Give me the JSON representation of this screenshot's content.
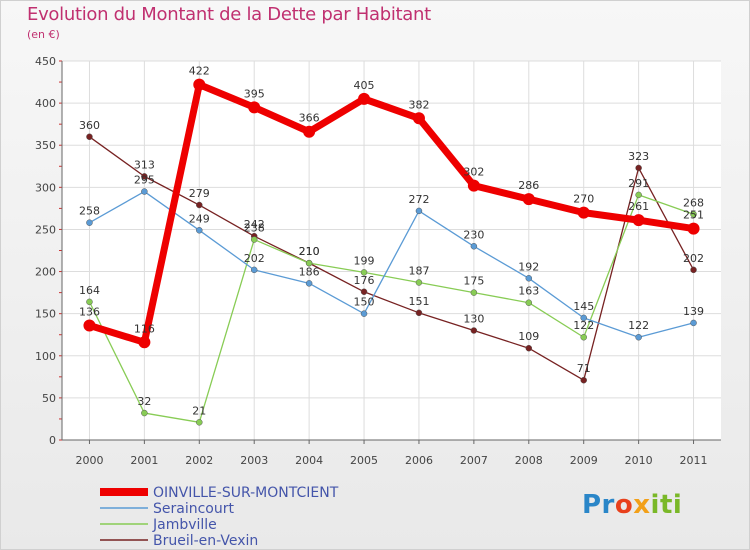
{
  "title": "Evolution du Montant de la Dette par Habitant",
  "subtitle": "(en €)",
  "logo": {
    "text": "Proxiti",
    "parts": [
      "Pr",
      "o",
      "x",
      "iti"
    ]
  },
  "chart_data": {
    "type": "line",
    "title": "Evolution du Montant de la Dette par Habitant",
    "subtitle": "(en €)",
    "xlabel": "",
    "ylabel": "",
    "x": [
      "2000",
      "2001",
      "2002",
      "2003",
      "2004",
      "2005",
      "2006",
      "2007",
      "2008",
      "2009",
      "2010",
      "2011"
    ],
    "ylim": [
      0,
      450
    ],
    "yticks": [
      0,
      50,
      100,
      150,
      200,
      250,
      300,
      350,
      400,
      450
    ],
    "grid": true,
    "legend_position": "bottom-left",
    "series": [
      {
        "name": "OINVILLE-SUR-MONTCIENT",
        "color": "#ee0000",
        "values": [
          136,
          116,
          422,
          395,
          366,
          405,
          382,
          302,
          286,
          270,
          261,
          251
        ]
      },
      {
        "name": "Seraincourt",
        "color": "#5b9bd5",
        "values": [
          258,
          295,
          249,
          202,
          186,
          150,
          272,
          230,
          192,
          145,
          122,
          139
        ]
      },
      {
        "name": "Jambville",
        "color": "#88cc55",
        "values": [
          164,
          32,
          21,
          238,
          210,
          199,
          187,
          175,
          163,
          122,
          291,
          268
        ]
      },
      {
        "name": "Brueil-en-Vexin",
        "color": "#772222",
        "values": [
          360,
          313,
          279,
          242,
          210,
          176,
          151,
          130,
          109,
          71,
          323,
          202
        ]
      }
    ]
  }
}
